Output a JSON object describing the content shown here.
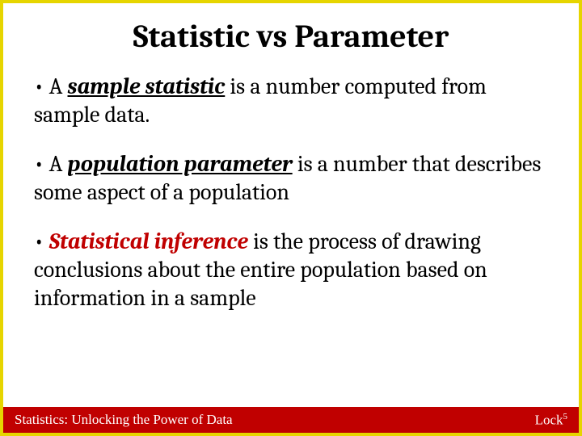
{
  "colors": {
    "border": "#e6d500",
    "footer_bg": "#c00000",
    "footer_text": "#ffffff",
    "term_red": "#c00000",
    "text": "#000000",
    "background": "#ffffff"
  },
  "title": "Statistic vs Parameter",
  "bullets": [
    {
      "prefix": "A ",
      "term": "sample statistic",
      "term_style": "underline",
      "rest": " is a number computed from sample data."
    },
    {
      "prefix": "A ",
      "term": "population parameter",
      "term_style": "underline",
      "rest": " is a number that describes some aspect of a population"
    },
    {
      "prefix": "",
      "term": "Statistical inference",
      "term_style": "red",
      "rest": "  is the process of drawing conclusions about the entire population based on information in a sample"
    }
  ],
  "footer": {
    "left": "Statistics: Unlocking the Power of Data",
    "right_base": "Lock",
    "right_sup": "5"
  },
  "typography": {
    "title_fontsize": 40,
    "bullet_fontsize": 28,
    "footer_fontsize": 17
  }
}
